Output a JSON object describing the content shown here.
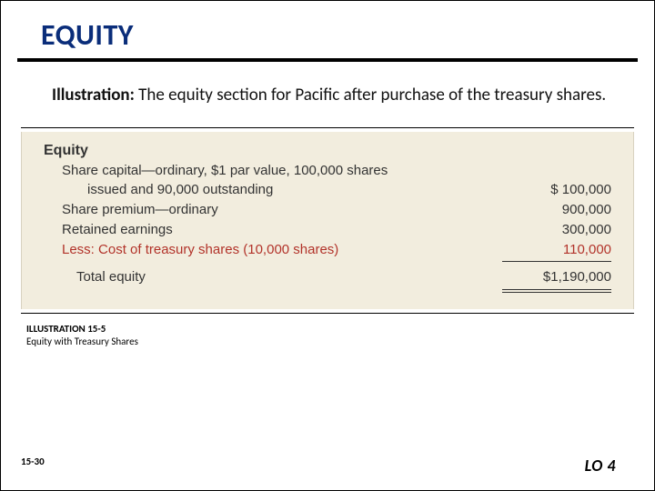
{
  "title": "EQUITY",
  "body": {
    "label": "Illustration:",
    "text": "  The equity section for Pacific after purchase of the treasury shares."
  },
  "table": {
    "header": "Equity",
    "rows": [
      {
        "label_line1": "Share capital—ordinary, $1 par value, 100,000 shares",
        "label_line2": "issued and 90,000 outstanding",
        "amount": "$   100,000",
        "less": false
      },
      {
        "label": "Share premium—ordinary",
        "amount": "900,000",
        "less": false
      },
      {
        "label": "Retained earnings",
        "amount": "300,000",
        "less": false
      },
      {
        "label": "Less: Cost of treasury shares (10,000 shares)",
        "amount": "110,000",
        "less": true
      }
    ],
    "total": {
      "label": "Total equity",
      "amount": "$1,190,000"
    }
  },
  "caption": {
    "title": "ILLUSTRATION 15-5",
    "sub": "Equity with Treasury Shares"
  },
  "footer": {
    "slide": "15-30",
    "lo": "LO 4"
  },
  "colors": {
    "title": "#0a2d7a",
    "panel_bg": "#f2edde",
    "less_color": "#b2332a"
  }
}
